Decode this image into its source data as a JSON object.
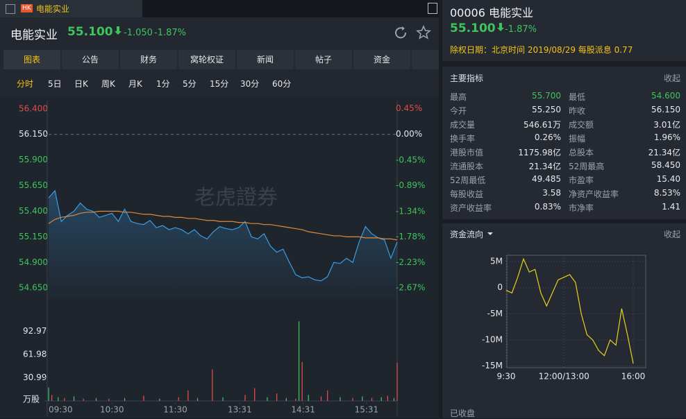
{
  "tab": {
    "badge": "HK",
    "title": "电能实业"
  },
  "header": {
    "name": "电能实业",
    "price": "55.100",
    "change": "-1.050",
    "change_pct": "-1.87%"
  },
  "tabs": [
    "图表",
    "公告",
    "财务",
    "窝轮权证",
    "新闻",
    "帖子",
    "资金"
  ],
  "periods": [
    "分时",
    "5日",
    "日K",
    "周K",
    "月K",
    "1分",
    "5分",
    "15分",
    "30分",
    "60分"
  ],
  "watermark": "老虎證券",
  "price_chart": {
    "type": "line",
    "xlim": [
      0,
      330
    ],
    "xticks": [
      {
        "value": 0,
        "label": "09:30"
      },
      {
        "value": 60,
        "label": "10:30"
      },
      {
        "value": 120,
        "label": "11:30"
      },
      {
        "value": 181,
        "label": "13:31"
      },
      {
        "value": 241,
        "label": "14:31"
      },
      {
        "value": 301,
        "label": "15:31"
      }
    ],
    "ylim": [
      54.55,
      56.48
    ],
    "yticks": [
      {
        "value": 56.4,
        "label": "56.400"
      },
      {
        "value": 56.15,
        "label": "56.150"
      },
      {
        "value": 55.9,
        "label": "55.900"
      },
      {
        "value": 55.65,
        "label": "55.650"
      },
      {
        "value": 55.4,
        "label": "55.400"
      },
      {
        "value": 55.15,
        "label": "55.150"
      },
      {
        "value": 54.9,
        "label": "54.900"
      },
      {
        "value": 54.65,
        "label": "54.650"
      }
    ],
    "y2lim": [
      -2.85,
      0.588
    ],
    "y2ticks": [
      {
        "value": 0.45,
        "label": "0.45%"
      },
      {
        "value": 0,
        "label": "0.00%"
      },
      {
        "value": -0.45,
        "label": "-0.45%"
      },
      {
        "value": -0.89,
        "label": "-0.89%"
      },
      {
        "value": -1.34,
        "label": "-1.34%"
      },
      {
        "value": -1.78,
        "label": "-1.78%"
      },
      {
        "value": -2.23,
        "label": "-2.23%"
      },
      {
        "value": -2.67,
        "label": "-2.67%"
      }
    ],
    "x": [
      0,
      6,
      12,
      18,
      24,
      30,
      36,
      42,
      48,
      54,
      60,
      66,
      72,
      78,
      84,
      90,
      96,
      102,
      108,
      114,
      120,
      126,
      132,
      138,
      144,
      150,
      156,
      162,
      168,
      174,
      180,
      186,
      192,
      198,
      204,
      210,
      216,
      222,
      228,
      234,
      240,
      246,
      252,
      258,
      264,
      270,
      276,
      282,
      288,
      294,
      300,
      306,
      312,
      318,
      324,
      330
    ],
    "series": [
      {
        "color": "#3a9ee6",
        "values": [
          55.53,
          55.6,
          55.3,
          55.36,
          55.4,
          55.48,
          55.42,
          55.4,
          55.34,
          55.36,
          55.38,
          55.3,
          55.42,
          55.3,
          55.28,
          55.27,
          55.31,
          55.24,
          55.26,
          55.22,
          55.24,
          55.22,
          55.18,
          55.22,
          55.16,
          55.13,
          55.2,
          55.25,
          55.23,
          55.22,
          55.24,
          55.3,
          55.15,
          55.13,
          55.18,
          55.06,
          55.0,
          55.03,
          54.9,
          54.78,
          54.75,
          54.76,
          54.73,
          54.72,
          54.76,
          54.9,
          54.89,
          54.94,
          54.9,
          55.1,
          55.25,
          55.18,
          55.14,
          55.12,
          54.94,
          55.1
        ]
      },
      {
        "color": "#e08a3c",
        "values": [
          55.28,
          55.32,
          55.34,
          55.35,
          55.36,
          55.38,
          55.39,
          55.39,
          55.4,
          55.4,
          55.4,
          55.4,
          55.39,
          55.39,
          55.38,
          55.37,
          55.37,
          55.36,
          55.35,
          55.35,
          55.34,
          55.34,
          55.33,
          55.33,
          55.32,
          55.31,
          55.31,
          55.3,
          55.3,
          55.3,
          55.29,
          55.29,
          55.28,
          55.28,
          55.27,
          55.27,
          55.26,
          55.25,
          55.24,
          55.23,
          55.22,
          55.2,
          55.19,
          55.18,
          55.17,
          55.16,
          55.16,
          55.15,
          55.15,
          55.15,
          55.14,
          55.14,
          55.14,
          55.13,
          55.13,
          55.12
        ]
      }
    ]
  },
  "volume_chart": {
    "type": "bar",
    "ylim": [
      0,
      109
    ],
    "yticks": [
      {
        "value": 92.97,
        "label": "92.97"
      },
      {
        "value": 61.98,
        "label": "61.98"
      },
      {
        "value": 30.99,
        "label": "30.99"
      },
      {
        "value": 0,
        "label": "万股"
      }
    ],
    "x": [
      0,
      3,
      9,
      15,
      24,
      33,
      45,
      57,
      72,
      90,
      105,
      123,
      132,
      141,
      155,
      165,
      186,
      195,
      207,
      216,
      225,
      234,
      237,
      240,
      246,
      258,
      264,
      276,
      288,
      297,
      306,
      315,
      321,
      327,
      330
    ],
    "values": [
      18,
      8,
      5,
      4,
      6,
      3,
      4,
      3,
      4,
      7,
      3,
      5,
      14,
      4,
      42,
      5,
      8,
      17,
      5,
      10,
      4,
      3,
      106,
      52,
      8,
      6,
      14,
      5,
      4,
      6,
      4,
      5,
      7,
      4,
      51
    ],
    "colors": [
      "#3fbf5f",
      "#e04b4b",
      "#3fbf5f",
      "#e04b4b",
      "#3fbf5f",
      "#e04b4b",
      "#3fbf5f",
      "#e04b4b",
      "#3fbf5f",
      "#e04b4b",
      "#3fbf5f",
      "#e04b4b",
      "#e04b4b",
      "#3fbf5f",
      "#e04b4b",
      "#3fbf5f",
      "#e04b4b",
      "#e04b4b",
      "#3fbf5f",
      "#e04b4b",
      "#3fbf5f",
      "#e04b4b",
      "#3fbf5f",
      "#e04b4b",
      "#3fbf5f",
      "#e04b4b",
      "#e04b4b",
      "#3fbf5f",
      "#e04b4b",
      "#3fbf5f",
      "#e04b4b",
      "#3fbf5f",
      "#e04b4b",
      "#3fbf5f",
      "#e04b4b"
    ]
  },
  "quote": {
    "code_name": "00006 电能实业",
    "price": "55.100",
    "change_pct": "-1.87%",
    "dividend": "除权日期：北京时间 2019/08/29 每股派息 0.77"
  },
  "indicators": {
    "title": "主要指标",
    "toggle": "收起",
    "rows": [
      [
        "最高",
        "55.700",
        "最低",
        "54.600"
      ],
      [
        "今开",
        "55.250",
        "昨收",
        "56.150"
      ],
      [
        "成交量",
        "546.61万",
        "成交额",
        "3.01亿"
      ],
      [
        "换手率",
        "0.26%",
        "振幅",
        "1.96%"
      ],
      [
        "港股市值",
        "1175.98亿",
        "总股本",
        "21.34亿"
      ],
      [
        "流通股本",
        "21.34亿",
        "52周最高",
        "58.450"
      ],
      [
        "52周最低",
        "49.485",
        "市盈率",
        "15.40"
      ],
      [
        "每股收益",
        "3.58",
        "净资产收益率",
        "8.53%"
      ],
      [
        "资产收益率",
        "0.83%",
        "市净率",
        "1.41"
      ]
    ]
  },
  "flow": {
    "title": "资金流向",
    "toggle": "收起",
    "status": "已收盘",
    "chart": {
      "type": "line",
      "color": "#e8d21d",
      "xlim": [
        0,
        330
      ],
      "xticks": [
        {
          "value": 0,
          "label": "9:30"
        },
        {
          "value": 150,
          "label": "12:00/13:00"
        },
        {
          "value": 330,
          "label": "16:00"
        }
      ],
      "ylim": [
        -15.3,
        6.2
      ],
      "yticks": [
        {
          "value": 5,
          "label": "5M"
        },
        {
          "value": 0,
          "label": "0"
        },
        {
          "value": -5,
          "label": "-5M"
        },
        {
          "value": -10,
          "label": "-10M"
        },
        {
          "value": -15,
          "label": "-15M"
        }
      ],
      "x": [
        0,
        15,
        30,
        45,
        60,
        75,
        90,
        105,
        120,
        135,
        150,
        165,
        180,
        195,
        210,
        225,
        240,
        255,
        270,
        285,
        300,
        315,
        330
      ],
      "values": [
        -0.5,
        -1,
        2,
        5.5,
        3,
        3.5,
        -1,
        -3.5,
        -1,
        1.5,
        2,
        2.5,
        1,
        -5,
        -9,
        -10,
        -12,
        -13,
        -10,
        -11,
        -4,
        -9,
        -14.5
      ]
    }
  }
}
